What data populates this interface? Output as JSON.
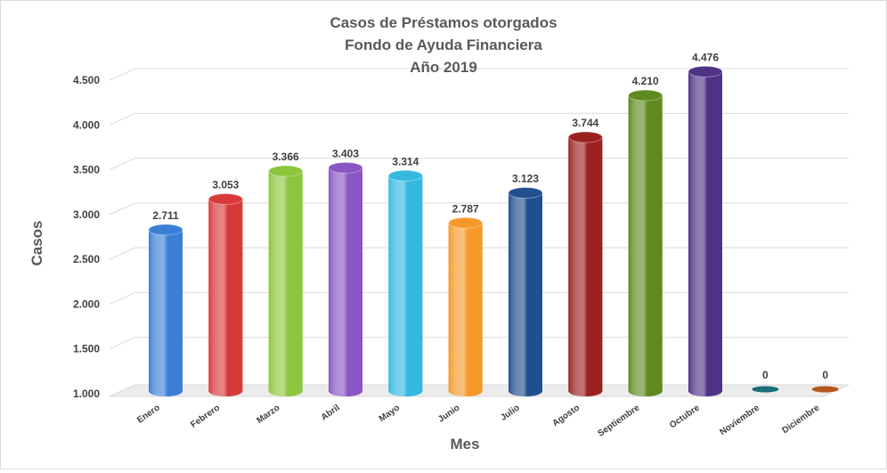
{
  "chart_data": {
    "type": "bar",
    "title": [
      "Casos de Préstamos otorgados",
      "Fondo de Ayuda Financiera",
      "Año 2019"
    ],
    "xlabel": "Mes",
    "ylabel": "Casos",
    "categories": [
      "Enero",
      "Febrero",
      "Marzo",
      "Abril",
      "Mayo",
      "Junio",
      "Julio",
      "Agosto",
      "Septiembre",
      "Octubre",
      "Noviembre",
      "Diciembre"
    ],
    "values": [
      2711,
      3053,
      3366,
      3403,
      3314,
      2787,
      3123,
      3744,
      4210,
      4476,
      0,
      0
    ],
    "data_labels": [
      "2.711",
      "3.053",
      "3.366",
      "3.403",
      "3.314",
      "2.787",
      "3.123",
      "3.744",
      "4.210",
      "4.476",
      "0",
      "0"
    ],
    "ylim": [
      1000,
      4500
    ],
    "yticks": [
      1000,
      1500,
      2000,
      2500,
      3000,
      3500,
      4000,
      4500
    ],
    "ytick_labels": [
      "1.000",
      "1.500",
      "2.000",
      "2.500",
      "3.000",
      "3.500",
      "4.000",
      "4.500"
    ],
    "grid": true,
    "legend": "none",
    "colors": [
      "#3a7fd5",
      "#d83a3a",
      "#8cc63e",
      "#8a55c4",
      "#33b8e0",
      "#f59a2a",
      "#1f4f8f",
      "#9b2121",
      "#5f8a1f",
      "#4e3387",
      "#1a6e7a",
      "#b5561c"
    ]
  }
}
